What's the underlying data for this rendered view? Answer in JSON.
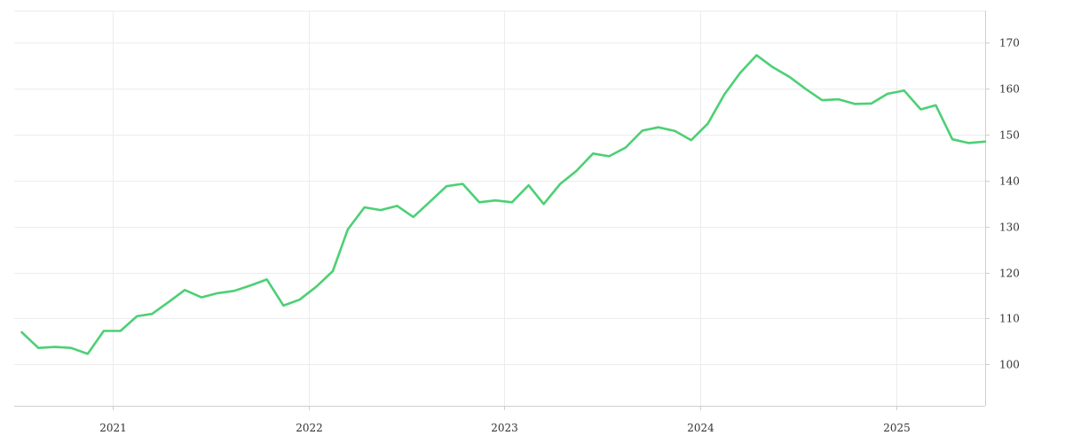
{
  "chart_data": {
    "type": "line",
    "title": "",
    "xlabel": "",
    "ylabel": "",
    "grid": true,
    "colors": {
      "line": "#4cd074",
      "grid": "#ececec",
      "axis": "#cfcfcf",
      "text": "#333333"
    },
    "x_range": [
      "2020-07-01",
      "2025-06-15"
    ],
    "y_range": [
      91,
      177
    ],
    "x_ticks": [
      {
        "date": "2021-01-01",
        "label": "2021"
      },
      {
        "date": "2022-01-01",
        "label": "2022"
      },
      {
        "date": "2023-01-01",
        "label": "2023"
      },
      {
        "date": "2024-01-01",
        "label": "2024"
      },
      {
        "date": "2025-01-01",
        "label": "2025"
      }
    ],
    "y_ticks": [
      100,
      110,
      120,
      130,
      140,
      150,
      160,
      170
    ],
    "series": [
      {
        "x": [
          "2020-07-15",
          "2020-08-15",
          "2020-09-15",
          "2020-10-15",
          "2020-11-15",
          "2020-12-15",
          "2021-01-15",
          "2021-02-15",
          "2021-03-15",
          "2021-04-15",
          "2021-05-15",
          "2021-06-15",
          "2021-07-15",
          "2021-08-15",
          "2021-09-15",
          "2021-10-15",
          "2021-11-15",
          "2021-12-15",
          "2022-01-15",
          "2022-02-15",
          "2022-03-15",
          "2022-04-15",
          "2022-05-15",
          "2022-06-15",
          "2022-07-15",
          "2022-08-15",
          "2022-09-15",
          "2022-10-15",
          "2022-11-15",
          "2022-12-15",
          "2023-01-15",
          "2023-02-15",
          "2023-03-15",
          "2023-04-15",
          "2023-05-15",
          "2023-06-15",
          "2023-07-15",
          "2023-08-15",
          "2023-09-15",
          "2023-10-15",
          "2023-11-15",
          "2023-12-15",
          "2024-01-15",
          "2024-02-15",
          "2024-03-15",
          "2024-04-15",
          "2024-05-15",
          "2024-06-15",
          "2024-07-15",
          "2024-08-15",
          "2024-09-15",
          "2024-10-15",
          "2024-11-15",
          "2024-12-15",
          "2025-01-15",
          "2025-02-15",
          "2025-03-15",
          "2025-04-15",
          "2025-05-15",
          "2025-06-15"
        ],
        "y": [
          107.0,
          103.6,
          103.8,
          103.6,
          102.3,
          107.3,
          107.3,
          110.5,
          111.0,
          113.6,
          116.2,
          114.6,
          115.5,
          116.0,
          117.2,
          118.5,
          112.8,
          114.1,
          116.9,
          120.3,
          129.4,
          134.2,
          133.6,
          134.5,
          132.1,
          135.4,
          138.8,
          139.3,
          135.3,
          135.7,
          135.3,
          139.0,
          134.9,
          139.3,
          142.1,
          145.9,
          145.3,
          147.2,
          150.9,
          151.6,
          150.8,
          148.8,
          152.4,
          158.8,
          163.4,
          167.3,
          164.7,
          162.6,
          160.0,
          157.5,
          157.7,
          156.7,
          156.8,
          158.9,
          159.6,
          155.5,
          156.4,
          149.0,
          148.2,
          148.5
        ]
      }
    ]
  }
}
